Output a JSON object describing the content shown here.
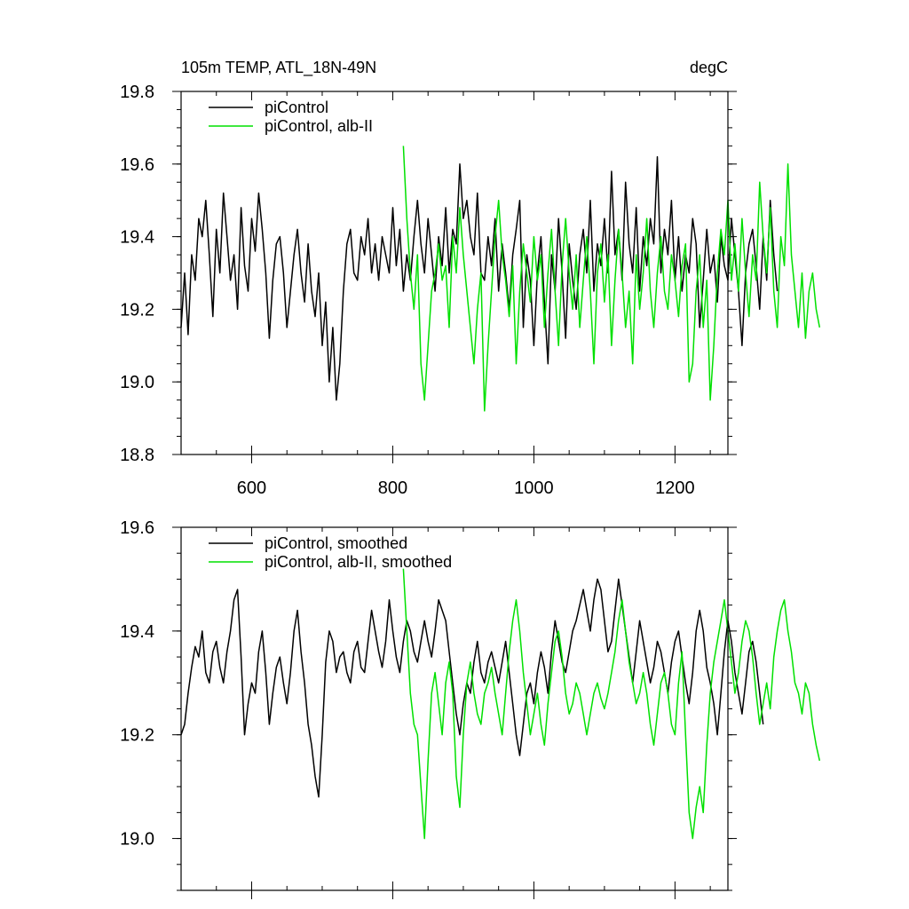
{
  "chart_data": [
    {
      "type": "line",
      "title_left": "105m TEMP, ATL_18N-49N",
      "title_right": "degC",
      "xlim": [
        500,
        1275
      ],
      "ylim": [
        18.8,
        19.8
      ],
      "x_ticks": [
        600,
        800,
        1000,
        1200
      ],
      "x_tick_labels": [
        "600",
        "800",
        "1000",
        "1200"
      ],
      "y_ticks": [
        18.8,
        19.0,
        19.2,
        19.4,
        19.6,
        19.8
      ],
      "y_tick_labels": [
        "18.8",
        "19.0",
        "19.2",
        "19.4",
        "19.6",
        "19.8"
      ],
      "legend_position": "top-left",
      "series": [
        {
          "name": "piControl",
          "color": "#000000",
          "x_start": 500,
          "x_step": 5,
          "values": [
            19.15,
            19.3,
            19.13,
            19.35,
            19.28,
            19.45,
            19.4,
            19.5,
            19.35,
            19.18,
            19.42,
            19.3,
            19.52,
            19.4,
            19.28,
            19.35,
            19.2,
            19.48,
            19.32,
            19.25,
            19.45,
            19.36,
            19.52,
            19.42,
            19.3,
            19.12,
            19.28,
            19.38,
            19.4,
            19.3,
            19.15,
            19.25,
            19.35,
            19.42,
            19.3,
            19.22,
            19.38,
            19.25,
            19.18,
            19.3,
            19.1,
            19.22,
            19.0,
            19.15,
            18.95,
            19.05,
            19.25,
            19.38,
            19.42,
            19.3,
            19.28,
            19.4,
            19.35,
            19.45,
            19.3,
            19.38,
            19.28,
            19.4,
            19.35,
            19.3,
            19.48,
            19.32,
            19.42,
            19.25,
            19.35,
            19.28,
            19.4,
            19.5,
            19.38,
            19.3,
            19.45,
            19.35,
            19.25,
            19.4,
            19.32,
            19.48,
            19.3,
            19.42,
            19.38,
            19.6,
            19.45,
            19.5,
            19.4,
            19.35,
            19.52,
            19.3,
            19.28,
            19.4,
            19.32,
            19.45,
            19.25,
            19.38,
            19.3,
            19.2,
            19.35,
            19.42,
            19.5,
            19.15,
            19.35,
            19.28,
            19.1,
            19.3,
            19.4,
            19.22,
            19.05,
            19.35,
            19.25,
            19.45,
            19.3,
            19.12,
            19.38,
            19.28,
            19.2,
            19.35,
            19.42,
            19.3,
            19.5,
            19.25,
            19.38,
            19.32,
            19.45,
            19.3,
            19.58,
            19.35,
            19.42,
            19.28,
            19.55,
            19.38,
            19.3,
            19.48,
            19.25,
            19.4,
            19.32,
            19.45,
            19.38,
            19.62,
            19.3,
            19.42,
            19.35,
            19.5,
            19.28,
            19.4,
            19.25,
            19.35,
            19.3,
            19.45,
            19.38,
            19.15,
            19.28,
            19.42,
            19.3,
            19.35,
            19.22,
            19.4,
            19.32,
            19.28,
            19.45,
            19.35,
            19.25,
            19.1,
            19.3,
            19.38,
            19.42,
            19.32,
            19.2,
            19.4,
            19.28,
            19.5,
            19.35,
            19.25
          ]
        },
        {
          "name": "piControl, alb-II",
          "color": "#00e000",
          "x_start": 815,
          "x_step": 5,
          "values": [
            19.65,
            19.45,
            19.3,
            19.2,
            19.35,
            19.05,
            18.95,
            19.1,
            19.25,
            19.3,
            19.38,
            19.28,
            19.32,
            19.15,
            19.4,
            19.3,
            19.48,
            19.35,
            19.25,
            19.15,
            19.05,
            19.2,
            19.3,
            18.92,
            19.1,
            19.25,
            19.4,
            19.5,
            19.35,
            19.28,
            19.18,
            19.32,
            19.05,
            19.25,
            19.38,
            19.3,
            19.22,
            19.4,
            19.28,
            19.35,
            19.15,
            19.3,
            19.42,
            19.25,
            19.1,
            19.32,
            19.45,
            19.3,
            19.2,
            19.35,
            19.15,
            19.28,
            19.4,
            19.25,
            19.05,
            19.3,
            19.38,
            19.22,
            19.35,
            19.1,
            19.28,
            19.42,
            19.3,
            19.15,
            19.25,
            19.05,
            19.35,
            19.2,
            19.3,
            19.45,
            19.25,
            19.15,
            19.3,
            19.4,
            19.25,
            19.2,
            19.35,
            19.28,
            19.18,
            19.32,
            19.38,
            19.0,
            19.05,
            19.25,
            19.35,
            19.15,
            19.28,
            18.95,
            19.1,
            19.3,
            19.42,
            19.35,
            19.5,
            19.28,
            19.38,
            19.25,
            19.45,
            19.3,
            19.18,
            19.35,
            19.28,
            19.55,
            19.4,
            19.3,
            19.48,
            19.25,
            19.15,
            19.4,
            19.32,
            19.6,
            19.35,
            19.25,
            19.15,
            19.3,
            19.12,
            19.25,
            19.3,
            19.2,
            19.15
          ]
        }
      ]
    },
    {
      "type": "line",
      "xlim": [
        500,
        1275
      ],
      "ylim": [
        18.9,
        19.6
      ],
      "x_ticks": [
        600,
        800,
        1000,
        1200
      ],
      "y_ticks": [
        19.0,
        19.2,
        19.4,
        19.6
      ],
      "y_tick_labels": [
        "19.0",
        "19.2",
        "19.4",
        "19.6"
      ],
      "legend_position": "top-left",
      "series": [
        {
          "name": "piControl, smoothed",
          "color": "#000000",
          "x_start": 500,
          "x_step": 5,
          "values": [
            19.2,
            19.22,
            19.28,
            19.33,
            19.37,
            19.35,
            19.4,
            19.32,
            19.3,
            19.36,
            19.38,
            19.33,
            19.3,
            19.36,
            19.4,
            19.46,
            19.48,
            19.35,
            19.2,
            19.26,
            19.3,
            19.28,
            19.36,
            19.4,
            19.32,
            19.22,
            19.28,
            19.33,
            19.35,
            19.3,
            19.26,
            19.32,
            19.4,
            19.44,
            19.36,
            19.3,
            19.22,
            19.18,
            19.12,
            19.08,
            19.2,
            19.34,
            19.4,
            19.38,
            19.32,
            19.35,
            19.36,
            19.32,
            19.3,
            19.36,
            19.38,
            19.33,
            19.32,
            19.38,
            19.44,
            19.4,
            19.36,
            19.33,
            19.38,
            19.46,
            19.4,
            19.35,
            19.32,
            19.38,
            19.42,
            19.4,
            19.36,
            19.34,
            19.38,
            19.42,
            19.38,
            19.35,
            19.4,
            19.46,
            19.44,
            19.42,
            19.36,
            19.3,
            19.24,
            19.2,
            19.26,
            19.3,
            19.28,
            19.34,
            19.38,
            19.32,
            19.3,
            19.34,
            19.36,
            19.33,
            19.3,
            19.34,
            19.38,
            19.32,
            19.26,
            19.2,
            19.16,
            19.22,
            19.28,
            19.3,
            19.26,
            19.32,
            19.36,
            19.33,
            19.28,
            19.36,
            19.42,
            19.38,
            19.34,
            19.32,
            19.36,
            19.4,
            19.42,
            19.45,
            19.48,
            19.44,
            19.4,
            19.46,
            19.5,
            19.48,
            19.42,
            19.36,
            19.38,
            19.44,
            19.5,
            19.45,
            19.4,
            19.35,
            19.3,
            19.36,
            19.42,
            19.38,
            19.34,
            19.3,
            19.33,
            19.38,
            19.36,
            19.32,
            19.28,
            19.34,
            19.38,
            19.4,
            19.35,
            19.3,
            19.26,
            19.32,
            19.4,
            19.44,
            19.4,
            19.33,
            19.3,
            19.26,
            19.2,
            19.28,
            19.36,
            19.42,
            19.38,
            19.32,
            19.28,
            19.24,
            19.3,
            19.36,
            19.38,
            19.34,
            19.28,
            19.22
          ]
        },
        {
          "name": "piControl, alb-II, smoothed",
          "color": "#00e000",
          "x_start": 815,
          "x_step": 5,
          "values": [
            19.52,
            19.4,
            19.28,
            19.22,
            19.2,
            19.1,
            19.0,
            19.15,
            19.28,
            19.32,
            19.26,
            19.2,
            19.3,
            19.34,
            19.28,
            19.12,
            19.06,
            19.2,
            19.3,
            19.34,
            19.28,
            19.24,
            19.22,
            19.28,
            19.3,
            19.33,
            19.28,
            19.24,
            19.2,
            19.28,
            19.36,
            19.42,
            19.46,
            19.4,
            19.32,
            19.26,
            19.2,
            19.24,
            19.28,
            19.22,
            19.18,
            19.26,
            19.32,
            19.38,
            19.4,
            19.35,
            19.28,
            19.24,
            19.26,
            19.3,
            19.28,
            19.24,
            19.2,
            19.24,
            19.28,
            19.3,
            19.27,
            19.25,
            19.28,
            19.32,
            19.36,
            19.42,
            19.46,
            19.4,
            19.34,
            19.3,
            19.26,
            19.28,
            19.32,
            19.28,
            19.22,
            19.18,
            19.24,
            19.3,
            19.32,
            19.28,
            19.22,
            19.2,
            19.3,
            19.36,
            19.2,
            19.05,
            19.0,
            19.06,
            19.1,
            19.05,
            19.18,
            19.28,
            19.34,
            19.38,
            19.42,
            19.46,
            19.4,
            19.34,
            19.28,
            19.32,
            19.38,
            19.42,
            19.4,
            19.35,
            19.28,
            19.22,
            19.26,
            19.3,
            19.25,
            19.35,
            19.4,
            19.44,
            19.46,
            19.4,
            19.36,
            19.3,
            19.28,
            19.24,
            19.3,
            19.28,
            19.22,
            19.18,
            19.15
          ]
        }
      ]
    }
  ]
}
